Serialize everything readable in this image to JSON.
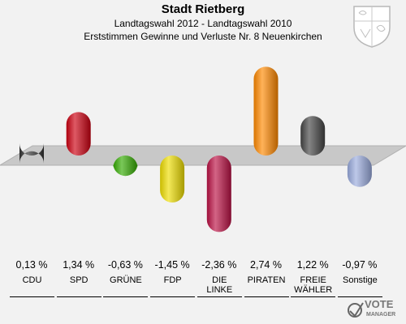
{
  "header": {
    "title": "Stadt Rietberg",
    "subtitle": "Landtagswahl 2012 - Landtagswahl 2010",
    "description": "Erststimmen Gewinne und Verluste Nr. 8 Neuenkirchen"
  },
  "chart_data": {
    "type": "bar",
    "categories": [
      "CDU",
      "SPD",
      "GRÜNE",
      "FDP",
      "DIE LINKE",
      "PIRATEN",
      "FREIE WÄHLER",
      "Sonstige"
    ],
    "category_lines": [
      [
        "CDU"
      ],
      [
        "SPD"
      ],
      [
        "GRÜNE"
      ],
      [
        "FDP"
      ],
      [
        "DIE",
        "LINKE"
      ],
      [
        "PIRATEN"
      ],
      [
        "FREIE",
        "WÄHLER"
      ],
      [
        "Sonstige"
      ]
    ],
    "values": [
      0.13,
      1.34,
      -0.63,
      -1.45,
      -2.36,
      2.74,
      1.22,
      -0.97
    ],
    "value_labels": [
      "0,13 %",
      "1,34 %",
      "-0,63 %",
      "-1,45 %",
      "-2,36 %",
      "2,74 %",
      "1,22 %",
      "-0,97 %"
    ],
    "colors": [
      "#333333",
      "#cc0011",
      "#33aa00",
      "#eedd00",
      "#bb1144",
      "#ff8800",
      "#444444",
      "#99aadd"
    ],
    "unit": "%",
    "ylim": [
      -2.36,
      2.74
    ],
    "grid": false,
    "legend": "none"
  },
  "branding": {
    "logo_text": "VOTE",
    "logo_subtext": "MANAGER"
  }
}
